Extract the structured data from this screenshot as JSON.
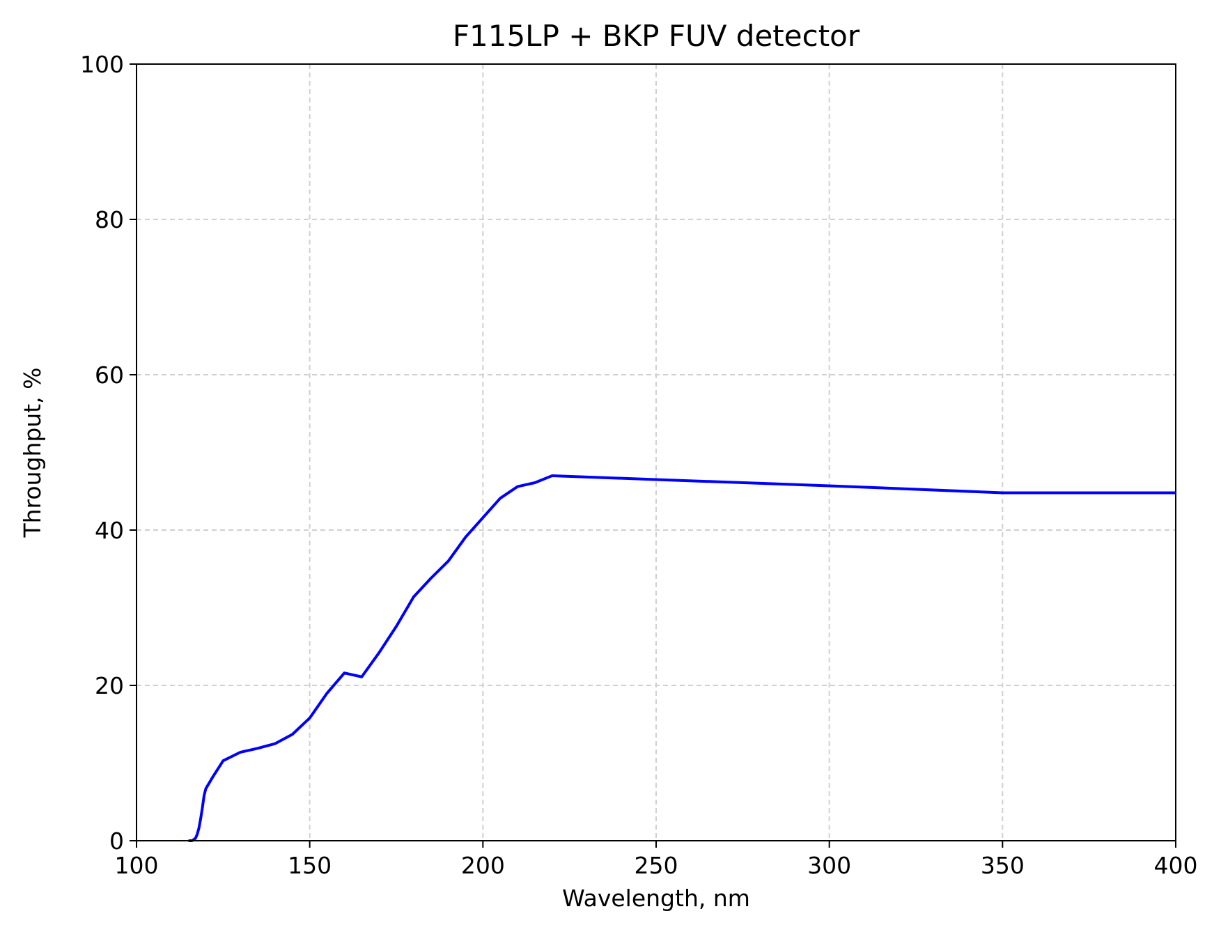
{
  "chart_data": {
    "type": "line",
    "title": "F115LP + BKP FUV detector",
    "xlabel": "Wavelength, nm",
    "ylabel": "Throughput, %",
    "xlim": [
      100,
      400
    ],
    "ylim": [
      0,
      100
    ],
    "xticks": [
      100,
      150,
      200,
      250,
      300,
      350,
      400
    ],
    "yticks": [
      0,
      20,
      40,
      60,
      80,
      100
    ],
    "grid": true,
    "grid_style": "dashed",
    "line_color": "#0000ff",
    "series": [
      {
        "x": [
          115,
          116,
          117,
          117.5,
          118,
          118.5,
          119,
          119.5,
          120,
          122,
          125,
          130,
          135,
          140,
          145,
          150,
          155,
          160,
          165,
          170,
          175,
          180,
          185,
          190,
          195,
          200,
          205,
          210,
          215,
          220,
          250,
          300,
          350,
          400
        ],
        "y": [
          0,
          0,
          0.3,
          0.8,
          1.6,
          2.8,
          4.2,
          5.8,
          6.7,
          8.2,
          10.3,
          11.4,
          11.9,
          12.5,
          13.7,
          15.8,
          19.0,
          21.6,
          21.1,
          24.2,
          27.6,
          31.4,
          33.8,
          36.0,
          39.1,
          41.6,
          44.1,
          45.6,
          46.1,
          47.0,
          46.5,
          45.7,
          44.8,
          44.8
        ]
      }
    ]
  }
}
